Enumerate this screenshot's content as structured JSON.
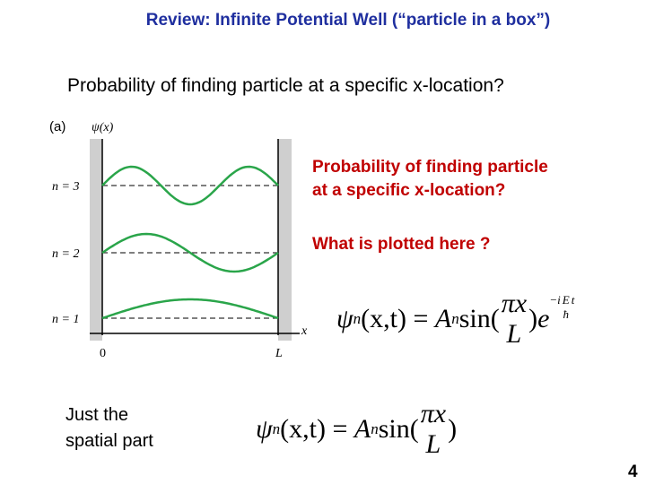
{
  "header": {
    "title": "Review: Infinite Potential Well (“particle in a box”)"
  },
  "question": "Probability of finding particle at a specific x-location?",
  "figure": {
    "panel": "(a)",
    "y_axis": "ψ(x)",
    "x_axis": "x",
    "levels": [
      "n = 3",
      "n = 2",
      "n = 1"
    ],
    "x_ticks": [
      "0",
      "L"
    ]
  },
  "notes": [
    "Probability of finding particle",
    "at a specific x-location?",
    "What is plotted here ?"
  ],
  "equation_full": {
    "psi": "ψ",
    "sub": "n",
    "args": "(x,t) =",
    "coef": "A",
    "coef_sub": "n",
    "func": "sin(",
    "num": "πx",
    "den": "L",
    "close": ")",
    "base": "e",
    "exp": "−i",
    "exp_num": "E",
    "exp_den": "ħ",
    "exp_t": "t"
  },
  "caption": [
    "Just the",
    "spatial part"
  ],
  "equation_spatial": {
    "psi": "ψ",
    "sub": "n",
    "args": "(x,t) =",
    "coef": "A",
    "coef_sub": "n",
    "func": "sin(",
    "num": "πx",
    "den": "L",
    "close": ")"
  },
  "page_number": "4"
}
